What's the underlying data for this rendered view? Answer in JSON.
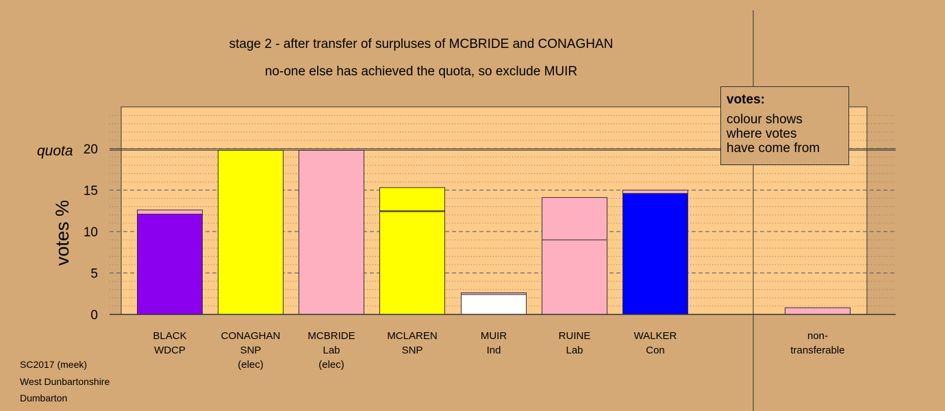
{
  "titles": {
    "line1": "stage 2 - after transfer of surpluses of MCBRIDE and CONAGHAN",
    "line2": "no-one else has achieved the quota, so exclude MUIR"
  },
  "legend": {
    "title": "votes:",
    "text": "colour shows\nwhere votes\nhave come from"
  },
  "footer": {
    "line1": "SC2017 (meek)",
    "line2": "West Dunbartonshire",
    "line3": "Dumbarton"
  },
  "chart_data": {
    "type": "bar",
    "stacked": true,
    "ylabel": "votes %",
    "quota_label": "quota",
    "quota": 19.9,
    "ylim": [
      0,
      25
    ],
    "yticks": [
      0,
      5,
      10,
      15,
      20
    ],
    "grid": "dotted-minor, dashed-major",
    "colors": {
      "WDCP": "#8b00ee",
      "SNP": "#ffff00",
      "Lab": "#ffb0c0",
      "Ind": "#ffffff",
      "Con": "#0000ff"
    },
    "categories": [
      {
        "lines": [
          "BLACK",
          "WDCP"
        ],
        "segments": [
          {
            "source": "WDCP",
            "value": 12.1
          },
          {
            "source": "Lab",
            "value": 0.5
          }
        ]
      },
      {
        "lines": [
          "CONAGHAN",
          "SNP",
          "(elec)"
        ],
        "segments": [
          {
            "source": "SNP",
            "value": 19.8
          }
        ]
      },
      {
        "lines": [
          "MCBRIDE",
          "Lab",
          "(elec)"
        ],
        "segments": [
          {
            "source": "Lab",
            "value": 19.8
          }
        ]
      },
      {
        "lines": [
          "MCLAREN",
          "SNP"
        ],
        "segments": [
          {
            "source": "SNP",
            "value": 12.4
          },
          {
            "source": "Lab",
            "value": 0.1
          },
          {
            "source": "SNP",
            "value": 2.8
          }
        ]
      },
      {
        "lines": [
          "MUIR",
          "Ind"
        ],
        "segments": [
          {
            "source": "Ind",
            "value": 2.4
          },
          {
            "source": "Lab",
            "value": 0.2
          }
        ]
      },
      {
        "lines": [
          "RUINE",
          "Lab"
        ],
        "segments": [
          {
            "source": "Lab",
            "value": 9.0
          },
          {
            "source": "Lab",
            "value": 5.1
          }
        ]
      },
      {
        "lines": [
          "WALKER",
          "Con"
        ],
        "segments": [
          {
            "source": "Con",
            "value": 14.6
          },
          {
            "source": "Lab",
            "value": 0.4
          }
        ]
      },
      {
        "lines": [
          "non-",
          "transferable"
        ],
        "segments": [
          {
            "source": "Lab",
            "value": 0.8
          }
        ]
      }
    ]
  }
}
